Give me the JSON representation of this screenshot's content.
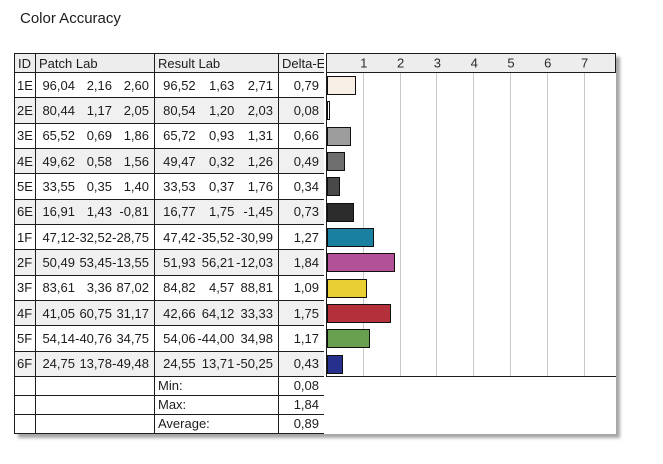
{
  "title": "Color Accuracy",
  "table": {
    "columns": {
      "id": "ID",
      "patch": "Patch Lab",
      "result": "Result Lab",
      "delta": "Delta-E"
    },
    "rows": [
      {
        "id": "1E",
        "patch": [
          "96,04",
          "2,16",
          "2,60"
        ],
        "result": [
          "96,52",
          "1,63",
          "2,71"
        ],
        "delta": "0,79",
        "delta_value": 0.79,
        "color": "#f7efe6"
      },
      {
        "id": "2E",
        "patch": [
          "80,44",
          "1,17",
          "2,05"
        ],
        "result": [
          "80,54",
          "1,20",
          "2,03"
        ],
        "delta": "0,08",
        "delta_value": 0.08,
        "color": "#ffffff"
      },
      {
        "id": "3E",
        "patch": [
          "65,52",
          "0,69",
          "1,86"
        ],
        "result": [
          "65,72",
          "0,93",
          "1,31"
        ],
        "delta": "0,66",
        "delta_value": 0.66,
        "color": "#9d9d9d"
      },
      {
        "id": "4E",
        "patch": [
          "49,62",
          "0,58",
          "1,56"
        ],
        "result": [
          "49,47",
          "0,32",
          "1,26"
        ],
        "delta": "0,49",
        "delta_value": 0.49,
        "color": "#6e6e6e"
      },
      {
        "id": "5E",
        "patch": [
          "33,55",
          "0,35",
          "1,40"
        ],
        "result": [
          "33,53",
          "0,37",
          "1,76"
        ],
        "delta": "0,34",
        "delta_value": 0.34,
        "color": "#494949"
      },
      {
        "id": "6E",
        "patch": [
          "16,91",
          "1,43",
          "-0,81"
        ],
        "result": [
          "16,77",
          "1,75",
          "-1,45"
        ],
        "delta": "0,73",
        "delta_value": 0.73,
        "color": "#2c2c2c"
      },
      {
        "id": "1F",
        "patch": [
          "47,12",
          "-32,52",
          "-28,75"
        ],
        "result": [
          "47,42",
          "-35,52",
          "-30,99"
        ],
        "delta": "1,27",
        "delta_value": 1.27,
        "color": "#1a80a2"
      },
      {
        "id": "2F",
        "patch": [
          "50,49",
          "53,45",
          "-13,55"
        ],
        "result": [
          "51,93",
          "56,21",
          "-12,03"
        ],
        "delta": "1,84",
        "delta_value": 1.84,
        "color": "#b25098"
      },
      {
        "id": "3F",
        "patch": [
          "83,61",
          "3,36",
          "87,02"
        ],
        "result": [
          "84,82",
          "4,57",
          "88,81"
        ],
        "delta": "1,09",
        "delta_value": 1.09,
        "color": "#e9cf31"
      },
      {
        "id": "4F",
        "patch": [
          "41,05",
          "60,75",
          "31,17"
        ],
        "result": [
          "42,66",
          "64,12",
          "33,33"
        ],
        "delta": "1,75",
        "delta_value": 1.75,
        "color": "#b4303a"
      },
      {
        "id": "5F",
        "patch": [
          "54,14",
          "-40,76",
          "34,75"
        ],
        "result": [
          "54,06",
          "-44,00",
          "34,98"
        ],
        "delta": "1,17",
        "delta_value": 1.17,
        "color": "#68a050"
      },
      {
        "id": "6F",
        "patch": [
          "24,75",
          "13,78",
          "-49,48"
        ],
        "result": [
          "24,55",
          "13,71",
          "-50,25"
        ],
        "delta": "0,43",
        "delta_value": 0.43,
        "color": "#28308e"
      }
    ],
    "summary": [
      {
        "label": "Min:",
        "value": "0,08"
      },
      {
        "label": "Max:",
        "value": "1,84"
      },
      {
        "label": "Average:",
        "value": "0,89"
      }
    ]
  },
  "chart": {
    "ticks": [
      "1",
      "2",
      "3",
      "4",
      "5",
      "6",
      "7"
    ]
  },
  "chart_data": {
    "type": "bar",
    "orientation": "horizontal",
    "title": "Color Accuracy",
    "xlabel": "Delta-E",
    "categories": [
      "1E",
      "2E",
      "3E",
      "4E",
      "5E",
      "6E",
      "1F",
      "2F",
      "3F",
      "4F",
      "5F",
      "6F"
    ],
    "values": [
      0.79,
      0.08,
      0.66,
      0.49,
      0.34,
      0.73,
      1.27,
      1.84,
      1.09,
      1.75,
      1.17,
      0.43
    ],
    "bar_colors": [
      "#f7efe6",
      "#ffffff",
      "#9d9d9d",
      "#6e6e6e",
      "#494949",
      "#2c2c2c",
      "#1a80a2",
      "#b25098",
      "#e9cf31",
      "#b4303a",
      "#68a050",
      "#28308e"
    ],
    "xlim": [
      0,
      7.9
    ],
    "x_ticks": [
      1,
      2,
      3,
      4,
      5,
      6,
      7
    ],
    "grid": "vertical",
    "legend": "none",
    "summary": {
      "min": 0.08,
      "max": 1.84,
      "average": 0.89
    }
  }
}
